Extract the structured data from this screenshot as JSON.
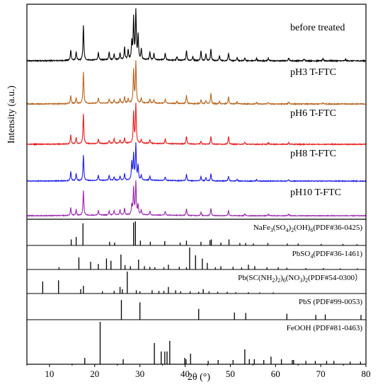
{
  "chart_data": {
    "type": "line",
    "xlabel": "2θ (°)",
    "ylabel": "Intensity (a.u.)",
    "xlim": [
      5,
      80
    ],
    "x_ticks": [
      10,
      20,
      30,
      40,
      50,
      60,
      70,
      80
    ],
    "grid": false,
    "legend": "none",
    "series": [
      {
        "name": "before treated",
        "color": "#000000",
        "peaks": [
          [
            14.7,
            0.22
          ],
          [
            15.9,
            0.18
          ],
          [
            17.5,
            0.72
          ],
          [
            20.8,
            0.16
          ],
          [
            23.2,
            0.17
          ],
          [
            24.3,
            0.12
          ],
          [
            25.6,
            0.14
          ],
          [
            26.6,
            0.25
          ],
          [
            27.4,
            0.2
          ],
          [
            28.2,
            0.36
          ],
          [
            28.6,
            0.85
          ],
          [
            29.1,
            1.0
          ],
          [
            29.6,
            0.5
          ],
          [
            30.3,
            0.22
          ],
          [
            32.2,
            0.16
          ],
          [
            33.1,
            0.13
          ],
          [
            35.6,
            0.14
          ],
          [
            38.2,
            0.07
          ],
          [
            40.3,
            0.21
          ],
          [
            41.7,
            0.08
          ],
          [
            43.5,
            0.2
          ],
          [
            44.6,
            0.14
          ],
          [
            45.7,
            0.24
          ],
          [
            47.6,
            0.1
          ],
          [
            49.6,
            0.16
          ],
          [
            51.5,
            0.07
          ],
          [
            53.2,
            0.06
          ],
          [
            55.8,
            0.05
          ],
          [
            58.4,
            0.06
          ],
          [
            62.9,
            0.06
          ],
          [
            66.3,
            0.04
          ],
          [
            70.5,
            0.04
          ],
          [
            75.5,
            0.03
          ]
        ]
      },
      {
        "name": "pH3 T-FTC",
        "color": "#B8641E",
        "peaks": [
          [
            14.7,
            0.2
          ],
          [
            15.9,
            0.14
          ],
          [
            17.5,
            0.78
          ],
          [
            20.8,
            0.13
          ],
          [
            23.2,
            0.1
          ],
          [
            24.3,
            0.08
          ],
          [
            25.6,
            0.1
          ],
          [
            26.6,
            0.15
          ],
          [
            27.4,
            0.1
          ],
          [
            28.6,
            0.8
          ],
          [
            29.1,
            1.0
          ],
          [
            30.3,
            0.12
          ],
          [
            32.2,
            0.1
          ],
          [
            33.1,
            0.08
          ],
          [
            35.6,
            0.1
          ],
          [
            38.2,
            0.05
          ],
          [
            40.3,
            0.2
          ],
          [
            43.5,
            0.1
          ],
          [
            44.6,
            0.08
          ],
          [
            45.7,
            0.26
          ],
          [
            47.6,
            0.06
          ],
          [
            49.6,
            0.18
          ],
          [
            51.5,
            0.05
          ],
          [
            55.8,
            0.04
          ],
          [
            58.4,
            0.04
          ],
          [
            62.9,
            0.05
          ],
          [
            70.5,
            0.03
          ]
        ]
      },
      {
        "name": "pH6 T-FTC",
        "color": "#E81E1E",
        "peaks": [
          [
            14.7,
            0.24
          ],
          [
            15.9,
            0.16
          ],
          [
            17.5,
            0.78
          ],
          [
            20.8,
            0.12
          ],
          [
            23.2,
            0.08
          ],
          [
            24.3,
            0.12
          ],
          [
            25.6,
            0.08
          ],
          [
            26.6,
            0.14
          ],
          [
            28.6,
            0.8
          ],
          [
            29.1,
            1.0
          ],
          [
            30.3,
            0.1
          ],
          [
            32.2,
            0.1
          ],
          [
            35.6,
            0.12
          ],
          [
            40.3,
            0.2
          ],
          [
            43.5,
            0.08
          ],
          [
            45.7,
            0.2
          ],
          [
            49.6,
            0.2
          ],
          [
            53.2,
            0.05
          ],
          [
            58.4,
            0.04
          ],
          [
            62.9,
            0.04
          ]
        ]
      },
      {
        "name": "pH8 T-FTC",
        "color": "#1E1EE8",
        "peaks": [
          [
            14.7,
            0.26
          ],
          [
            15.9,
            0.2
          ],
          [
            17.5,
            0.72
          ],
          [
            20.8,
            0.15
          ],
          [
            23.2,
            0.14
          ],
          [
            24.3,
            0.1
          ],
          [
            25.6,
            0.12
          ],
          [
            26.6,
            0.18
          ],
          [
            28.2,
            0.5
          ],
          [
            28.6,
            0.72
          ],
          [
            29.1,
            1.0
          ],
          [
            29.6,
            0.4
          ],
          [
            30.3,
            0.14
          ],
          [
            32.2,
            0.12
          ],
          [
            35.6,
            0.1
          ],
          [
            40.3,
            0.18
          ],
          [
            43.5,
            0.12
          ],
          [
            44.6,
            0.1
          ],
          [
            45.7,
            0.2
          ],
          [
            49.6,
            0.14
          ],
          [
            51.5,
            0.05
          ],
          [
            55.8,
            0.04
          ],
          [
            62.9,
            0.04
          ]
        ]
      },
      {
        "name": "pH10 T-FTC",
        "color": "#9B27B0",
        "peaks": [
          [
            14.7,
            0.24
          ],
          [
            15.9,
            0.18
          ],
          [
            17.5,
            0.76
          ],
          [
            20.8,
            0.14
          ],
          [
            23.2,
            0.12
          ],
          [
            24.3,
            0.14
          ],
          [
            25.6,
            0.16
          ],
          [
            26.6,
            0.2
          ],
          [
            28.2,
            0.3
          ],
          [
            28.6,
            0.82
          ],
          [
            29.1,
            1.0
          ],
          [
            29.6,
            0.3
          ],
          [
            30.3,
            0.16
          ],
          [
            32.2,
            0.12
          ],
          [
            35.6,
            0.12
          ],
          [
            40.3,
            0.2
          ],
          [
            43.5,
            0.1
          ],
          [
            45.7,
            0.22
          ],
          [
            49.6,
            0.16
          ],
          [
            53.2,
            0.05
          ],
          [
            58.4,
            0.04
          ],
          [
            62.9,
            0.05
          ]
        ]
      }
    ],
    "references": [
      {
        "label_parts": [
          [
            "NaFe",
            ""
          ],
          [
            "3",
            "sub"
          ],
          [
            "(SO",
            ""
          ],
          [
            "4",
            "sub"
          ],
          [
            ")",
            ""
          ],
          [
            "2",
            "sub"
          ],
          [
            "(OH)",
            ""
          ],
          [
            "6",
            "sub"
          ],
          [
            "(PDF#36-0425)",
            ""
          ]
        ],
        "lines": [
          [
            14.8,
            0.25
          ],
          [
            15.9,
            0.35
          ],
          [
            17.4,
            0.92
          ],
          [
            23.3,
            0.15
          ],
          [
            24.4,
            0.12
          ],
          [
            28.6,
            0.95
          ],
          [
            29.0,
            1.0
          ],
          [
            30.1,
            0.2
          ],
          [
            32.3,
            0.15
          ],
          [
            35.5,
            0.18
          ],
          [
            38.9,
            0.12
          ],
          [
            40.3,
            0.2
          ],
          [
            43.5,
            0.15
          ],
          [
            45.5,
            0.22
          ],
          [
            45.8,
            0.25
          ],
          [
            47.9,
            0.12
          ],
          [
            49.7,
            0.25
          ],
          [
            52.1,
            0.1
          ],
          [
            53.4,
            0.1
          ],
          [
            55.1,
            0.08
          ],
          [
            58.3,
            0.1
          ],
          [
            62.6,
            0.08
          ],
          [
            65.0,
            0.08
          ],
          [
            70.1,
            0.06
          ],
          [
            74.9,
            0.06
          ],
          [
            78.0,
            0.05
          ]
        ]
      },
      {
        "label_parts": [
          [
            "PbSO",
            ""
          ],
          [
            "4",
            "sub"
          ],
          [
            "(PDF#36-1461)",
            ""
          ]
        ],
        "lines": [
          [
            12.1,
            0.1
          ],
          [
            16.5,
            0.55
          ],
          [
            19.1,
            0.35
          ],
          [
            20.8,
            0.25
          ],
          [
            22.6,
            0.5
          ],
          [
            23.6,
            0.4
          ],
          [
            25.8,
            0.68
          ],
          [
            26.7,
            0.2
          ],
          [
            27.9,
            0.15
          ],
          [
            29.7,
            0.45
          ],
          [
            31.0,
            0.15
          ],
          [
            32.2,
            0.12
          ],
          [
            33.3,
            0.1
          ],
          [
            35.3,
            0.1
          ],
          [
            36.3,
            0.22
          ],
          [
            38.7,
            0.12
          ],
          [
            40.3,
            0.1
          ],
          [
            41.0,
            1.0
          ],
          [
            42.3,
            0.65
          ],
          [
            43.8,
            0.5
          ],
          [
            44.9,
            0.3
          ],
          [
            46.7,
            0.1
          ],
          [
            47.9,
            0.15
          ],
          [
            50.6,
            0.12
          ],
          [
            52.5,
            0.1
          ],
          [
            54.0,
            0.22
          ],
          [
            55.4,
            0.15
          ],
          [
            58.1,
            0.1
          ],
          [
            60.6,
            0.1
          ],
          [
            62.5,
            0.08
          ],
          [
            66.7,
            0.06
          ],
          [
            70.6,
            0.06
          ],
          [
            74.3,
            0.05
          ],
          [
            78.1,
            0.05
          ]
        ]
      },
      {
        "label_parts": [
          [
            "Pb(SC(NH",
            ""
          ],
          [
            "2",
            "sub"
          ],
          [
            ")",
            ""
          ],
          [
            "2",
            "sub"
          ],
          [
            ")",
            ""
          ],
          [
            "6",
            "sub"
          ],
          [
            "(NO",
            ""
          ],
          [
            "3",
            "sub"
          ],
          [
            ")",
            ""
          ],
          [
            "2",
            "sub"
          ],
          [
            "(PDF#54-0300）",
            ""
          ]
        ],
        "lines": [
          [
            8.5,
            0.55
          ],
          [
            12.0,
            0.6
          ],
          [
            16.9,
            0.2
          ],
          [
            17.5,
            0.35
          ],
          [
            21.7,
            0.1
          ],
          [
            24.3,
            0.12
          ],
          [
            25.6,
            0.3
          ],
          [
            26.1,
            0.2
          ],
          [
            27.2,
            1.0
          ],
          [
            29.2,
            0.15
          ],
          [
            30.0,
            0.1
          ],
          [
            32.7,
            0.15
          ],
          [
            34.2,
            0.12
          ],
          [
            35.3,
            0.12
          ],
          [
            36.3,
            0.3
          ],
          [
            37.9,
            0.15
          ],
          [
            39.0,
            0.1
          ],
          [
            41.1,
            0.1
          ],
          [
            43.0,
            0.08
          ],
          [
            44.0,
            0.2
          ],
          [
            45.3,
            0.1
          ],
          [
            47.2,
            0.08
          ],
          [
            49.3,
            0.08
          ],
          [
            51.2,
            0.06
          ],
          [
            54.0,
            0.06
          ],
          [
            56.5,
            0.05
          ],
          [
            59.5,
            0.05
          ]
        ]
      },
      {
        "label_parts": [
          [
            "PbS (PDF#99-0053)",
            ""
          ]
        ],
        "lines": [
          [
            25.9,
            0.82
          ],
          [
            30.0,
            0.72
          ],
          [
            43.0,
            0.45
          ],
          [
            50.9,
            0.3
          ],
          [
            53.4,
            0.28
          ],
          [
            62.5,
            0.25
          ],
          [
            68.9,
            0.2
          ],
          [
            71.0,
            0.22
          ],
          [
            78.9,
            0.2
          ]
        ]
      },
      {
        "label_parts": [
          [
            "FeOOH (PDF#81-0463)",
            ""
          ]
        ],
        "lines": [
          [
            17.8,
            0.15
          ],
          [
            21.2,
            1.0
          ],
          [
            26.3,
            0.12
          ],
          [
            33.2,
            0.5
          ],
          [
            34.7,
            0.3
          ],
          [
            35.5,
            0.3
          ],
          [
            36.0,
            0.3
          ],
          [
            36.6,
            0.55
          ],
          [
            39.9,
            0.15
          ],
          [
            40.2,
            0.12
          ],
          [
            41.2,
            0.25
          ],
          [
            45.1,
            0.08
          ],
          [
            47.3,
            0.1
          ],
          [
            50.6,
            0.1
          ],
          [
            53.2,
            0.35
          ],
          [
            54.2,
            0.12
          ],
          [
            55.3,
            0.12
          ],
          [
            57.4,
            0.1
          ],
          [
            59.0,
            0.18
          ],
          [
            61.3,
            0.12
          ],
          [
            63.7,
            0.1
          ],
          [
            64.0,
            0.1
          ],
          [
            66.7,
            0.08
          ],
          [
            68.8,
            0.08
          ],
          [
            71.3,
            0.08
          ],
          [
            72.9,
            0.08
          ],
          [
            76.5,
            0.06
          ],
          [
            78.8,
            0.06
          ]
        ]
      }
    ]
  }
}
